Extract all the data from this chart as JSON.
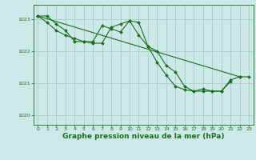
{
  "background_color": "#cde8e8",
  "grid_color": "#aacccc",
  "line_color": "#1a6e1a",
  "marker_color": "#1a6e1a",
  "xlabel": "Graphe pression niveau de la mer (hPa)",
  "xlabel_fontsize": 6.5,
  "tick_label_color": "#1a6e1a",
  "ylim": [
    1019.7,
    1023.45
  ],
  "xlim": [
    -0.5,
    23.5
  ],
  "yticks": [
    1020,
    1021,
    1022,
    1023
  ],
  "xticks": [
    0,
    1,
    2,
    3,
    4,
    5,
    6,
    7,
    8,
    9,
    10,
    11,
    12,
    13,
    14,
    15,
    16,
    17,
    18,
    19,
    20,
    21,
    22,
    23
  ],
  "series": [
    {
      "x": [
        0,
        1,
        2,
        3,
        4,
        5,
        6,
        7,
        8,
        9,
        10,
        11,
        12,
        13,
        14,
        15,
        16,
        17,
        18,
        19,
        20,
        21
      ],
      "y": [
        1023.1,
        1023.1,
        1022.85,
        1022.65,
        1022.3,
        1022.3,
        1022.25,
        1022.25,
        1022.75,
        1022.85,
        1022.95,
        1022.5,
        1022.15,
        1022.0,
        1021.55,
        1021.35,
        1020.9,
        1020.75,
        1020.82,
        1020.75,
        1020.75,
        1021.05
      ]
    },
    {
      "x": [
        0,
        1,
        2,
        3,
        4,
        5,
        6,
        7,
        8,
        9,
        10,
        11,
        12,
        13,
        14,
        15,
        16,
        17,
        18,
        19,
        20,
        21,
        22
      ],
      "y": [
        1023.1,
        1022.9,
        1022.65,
        1022.5,
        1022.4,
        1022.3,
        1022.3,
        1022.8,
        1022.7,
        1022.6,
        1022.95,
        1022.9,
        1022.15,
        1021.65,
        1021.25,
        1020.9,
        1020.8,
        1020.75,
        1020.75,
        1020.75,
        1020.75,
        1021.1,
        1021.2
      ]
    },
    {
      "x": [
        0,
        22,
        23
      ],
      "y": [
        1023.1,
        1021.2,
        1021.2
      ]
    }
  ]
}
